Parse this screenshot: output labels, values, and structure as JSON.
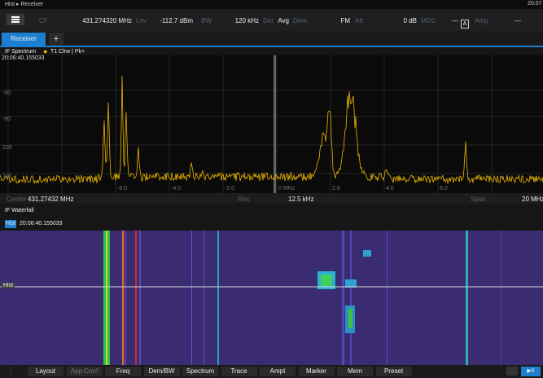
{
  "status_bar": {
    "breadcrumb": "Hist ▸ Receiver",
    "time": "20:07"
  },
  "toolbar": {
    "items": [
      {
        "label": "CF",
        "value": "431.274320 MHz"
      },
      {
        "label": "Lev",
        "value": "-112.7 dBm"
      },
      {
        "label": "BW",
        "value": "120 kHz"
      },
      {
        "label": "Det",
        "value": "Avg"
      },
      {
        "label": "Dem",
        "value": "FM"
      },
      {
        "label": "Att",
        "value": "0 dB"
      },
      {
        "label": "MGC",
        "value": "---"
      },
      {
        "label": "Amp",
        "value": "---"
      }
    ],
    "mgc_flag": "A"
  },
  "tabs": [
    "Receiver",
    "+"
  ],
  "spectrum": {
    "title": "IF Spectrum",
    "trace": "T1 Clrw | Pk+",
    "timestamp": "20:06:40.155033",
    "y_labels": [
      "-80",
      "-90",
      "100",
      "110"
    ],
    "x_labels": [
      "-6.0",
      "-4.0",
      "-2.0",
      "0 MHz",
      "2.0",
      "4.0",
      "6.0"
    ],
    "footer": {
      "center_label": "Center",
      "center_value": "431.27432 MHz",
      "res_label": "Res",
      "res_value": "12.5 kHz",
      "span_label": "Span",
      "span_value": "20 MHz"
    }
  },
  "waterfall": {
    "title": "IF Waterfall",
    "badge": "Hist",
    "timestamp": "20:06:40.155033",
    "marker": "Hist"
  },
  "softkeys": [
    "Layout",
    "App Conf",
    "Freq",
    "Dem/BW",
    "Spectrum",
    "Trace",
    "Ampt",
    "Marker",
    "Mem",
    "Preset"
  ]
}
